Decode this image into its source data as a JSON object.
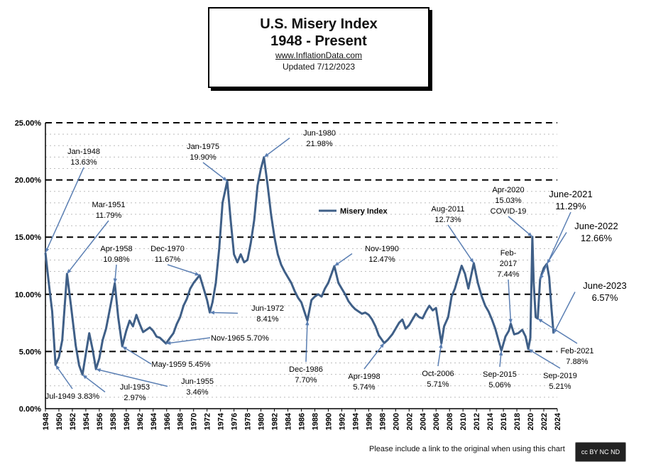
{
  "header": {
    "title_line1": "U.S. Misery Index",
    "title_line2": "1948 - Present",
    "source": "www.InflationData.com",
    "updated": "Updated  7/12/2023"
  },
  "footer": {
    "note": "Please include a link to the original when using this chart",
    "license_badge": "cc BY NC ND"
  },
  "colors": {
    "series": "#3f5f87",
    "grid": "#000000",
    "annotation_arrow": "#5b7fb3"
  },
  "chart_data": {
    "type": "line",
    "title": "U.S. Misery Index 1948 - Present",
    "xlabel": "",
    "ylabel": "",
    "xlim": [
      1948,
      2024
    ],
    "ylim": [
      0,
      25
    ],
    "y_ticks": [
      "0.00%",
      "5.00%",
      "10.00%",
      "15.00%",
      "20.00%",
      "25.00%"
    ],
    "x_ticks": [
      "1948",
      "1950",
      "1952",
      "1954",
      "1956",
      "1958",
      "1960",
      "1962",
      "1964",
      "1966",
      "1968",
      "1970",
      "1972",
      "1974",
      "1976",
      "1978",
      "1980",
      "1982",
      "1984",
      "1986",
      "1988",
      "1990",
      "1992",
      "1994",
      "1996",
      "1998",
      "2000",
      "2002",
      "2004",
      "2006",
      "2008",
      "2010",
      "2012",
      "2014",
      "2016",
      "2018",
      "2020",
      "2022",
      "2024"
    ],
    "grid": "dashed horizontal at each y tick",
    "legend": {
      "position": "center",
      "entries": [
        "Misery Index"
      ]
    },
    "series": [
      {
        "name": "Misery Index",
        "x": [
          1948.0,
          1948.5,
          1949.0,
          1949.5,
          1950.0,
          1950.5,
          1951.2,
          1951.8,
          1952.5,
          1953.0,
          1953.5,
          1954.0,
          1954.5,
          1955.0,
          1955.5,
          1956.0,
          1956.5,
          1957.0,
          1957.5,
          1958.3,
          1958.8,
          1959.4,
          1960.0,
          1960.5,
          1961.0,
          1961.5,
          1962.0,
          1962.5,
          1963.0,
          1963.5,
          1964.0,
          1964.5,
          1965.0,
          1965.9,
          1966.5,
          1967.0,
          1967.5,
          1968.0,
          1968.5,
          1969.0,
          1969.5,
          1970.0,
          1970.9,
          1971.5,
          1972.0,
          1972.4,
          1972.8,
          1973.3,
          1973.8,
          1974.3,
          1975.0,
          1975.5,
          1976.0,
          1976.5,
          1977.0,
          1977.5,
          1978.0,
          1978.5,
          1979.0,
          1979.5,
          1980.0,
          1980.45,
          1981.0,
          1981.5,
          1982.0,
          1982.5,
          1983.0,
          1983.5,
          1984.0,
          1984.5,
          1985.0,
          1985.5,
          1986.0,
          1986.9,
          1987.5,
          1988.0,
          1988.5,
          1989.0,
          1989.5,
          1990.0,
          1990.9,
          1991.5,
          1992.0,
          1992.5,
          1993.0,
          1993.5,
          1994.0,
          1994.5,
          1995.0,
          1995.5,
          1996.0,
          1996.5,
          1997.0,
          1997.5,
          1998.3,
          1998.8,
          1999.5,
          2000.0,
          2000.5,
          2001.0,
          2001.5,
          2002.0,
          2002.5,
          2003.0,
          2003.5,
          2004.0,
          2004.5,
          2005.0,
          2005.5,
          2006.0,
          2006.8,
          2007.2,
          2007.8,
          2008.3,
          2008.8,
          2009.3,
          2009.8,
          2010.3,
          2010.8,
          2011.6,
          2012.2,
          2012.8,
          2013.3,
          2013.8,
          2014.3,
          2014.8,
          2015.7,
          2016.3,
          2016.8,
          2017.1,
          2017.6,
          2018.2,
          2018.8,
          2019.3,
          2019.7,
          2020.0,
          2020.3,
          2020.5,
          2020.8,
          2021.1,
          2021.45,
          2021.7,
          2022.0,
          2022.45,
          2022.8,
          2023.1,
          2023.45
        ],
        "values": [
          13.63,
          11.0,
          8.5,
          3.83,
          4.5,
          6.0,
          11.79,
          9.0,
          5.5,
          3.8,
          2.97,
          4.8,
          6.6,
          5.2,
          3.46,
          4.4,
          6.0,
          7.0,
          8.5,
          10.98,
          8.0,
          5.45,
          6.8,
          7.7,
          7.2,
          8.2,
          7.4,
          6.7,
          6.9,
          7.1,
          6.8,
          6.3,
          6.2,
          5.7,
          6.2,
          6.6,
          7.4,
          8.0,
          9.0,
          9.6,
          10.5,
          11.0,
          11.67,
          10.5,
          9.5,
          8.41,
          9.3,
          11.0,
          14.0,
          18.0,
          19.9,
          16.5,
          13.5,
          12.8,
          13.5,
          12.8,
          13.0,
          14.5,
          16.5,
          19.5,
          21.0,
          21.98,
          19.5,
          17.0,
          15.0,
          13.5,
          12.6,
          12.0,
          11.5,
          11.0,
          10.3,
          9.7,
          9.3,
          7.7,
          9.5,
          9.8,
          10.0,
          9.8,
          10.5,
          11.0,
          12.47,
          11.0,
          10.5,
          10.0,
          9.4,
          9.0,
          8.7,
          8.5,
          8.3,
          8.4,
          8.2,
          7.8,
          7.2,
          6.4,
          5.74,
          6.0,
          6.5,
          7.0,
          7.5,
          7.8,
          7.0,
          7.3,
          7.8,
          8.3,
          8.0,
          7.9,
          8.5,
          9.0,
          8.6,
          8.8,
          5.71,
          7.2,
          8.0,
          9.8,
          10.5,
          11.5,
          12.5,
          11.8,
          10.5,
          12.73,
          11.0,
          9.8,
          9.0,
          8.5,
          7.8,
          7.0,
          5.06,
          6.3,
          6.8,
          7.44,
          6.5,
          6.6,
          6.9,
          6.3,
          5.21,
          6.2,
          15.03,
          11.0,
          8.0,
          7.88,
          11.29,
          11.8,
          12.3,
          12.66,
          11.5,
          9.0,
          6.57
        ]
      }
    ],
    "annotations": [
      {
        "label": "Jan-1948",
        "value_text": "13.63%",
        "x": 1948.0,
        "y": 13.63
      },
      {
        "label": "Jul-1949",
        "value_text": "3.83%",
        "x": 1949.5,
        "y": 3.83
      },
      {
        "label": "Mar-1951",
        "value_text": "11.79%",
        "x": 1951.2,
        "y": 11.79
      },
      {
        "label": "Jul-1953",
        "value_text": "2.97%",
        "x": 1953.5,
        "y": 2.97
      },
      {
        "label": "Jun-1955",
        "value_text": "3.46%",
        "x": 1955.5,
        "y": 3.46
      },
      {
        "label": "Apr-1958",
        "value_text": "10.98%",
        "x": 1958.3,
        "y": 10.98
      },
      {
        "label": "May-1959",
        "value_text": "5.45%",
        "x": 1959.4,
        "y": 5.45
      },
      {
        "label": "Nov-1965",
        "value_text": "5.70%",
        "x": 1965.9,
        "y": 5.7
      },
      {
        "label": "Dec-1970",
        "value_text": "11.67%",
        "x": 1970.9,
        "y": 11.67
      },
      {
        "label": "Jun-1972",
        "value_text": "8.41%",
        "x": 1972.4,
        "y": 8.41
      },
      {
        "label": "Jan-1975",
        "value_text": "19.90%",
        "x": 1975.0,
        "y": 19.9
      },
      {
        "label": "Jun-1980",
        "value_text": "21.98%",
        "x": 1980.45,
        "y": 21.98
      },
      {
        "label": "Dec-1986",
        "value_text": "7.70%",
        "x": 1986.9,
        "y": 7.7
      },
      {
        "label": "Nov-1990",
        "value_text": "12.47%",
        "x": 1990.9,
        "y": 12.47
      },
      {
        "label": "Apr-1998",
        "value_text": "5.74%",
        "x": 1998.3,
        "y": 5.74
      },
      {
        "label": "Oct-2006",
        "value_text": "5.71%",
        "x": 2006.8,
        "y": 5.71
      },
      {
        "label": "Aug-2011",
        "value_text": "12.73%",
        "x": 2011.6,
        "y": 12.73
      },
      {
        "label": "Sep-2015",
        "value_text": "5.06%",
        "x": 2015.7,
        "y": 5.06
      },
      {
        "label": "Feb-2017",
        "value_text": "7.44%",
        "x": 2017.1,
        "y": 7.44
      },
      {
        "label": "Sep-2019",
        "value_text": "5.21%",
        "x": 2019.7,
        "y": 5.21
      },
      {
        "label": "Apr-2020",
        "value_text": "15.03%",
        "extra": "COVID-19",
        "x": 2020.3,
        "y": 15.03
      },
      {
        "label": "Feb-2021",
        "value_text": "7.88%",
        "x": 2021.1,
        "y": 7.88
      },
      {
        "label": "June-2021",
        "value_text": "11.29%",
        "x": 2021.45,
        "y": 11.29
      },
      {
        "label": "June-2022",
        "value_text": "12.66%",
        "x": 2022.45,
        "y": 12.66
      },
      {
        "label": "June-2023",
        "value_text": "6.57%",
        "x": 2023.45,
        "y": 6.57
      }
    ]
  }
}
